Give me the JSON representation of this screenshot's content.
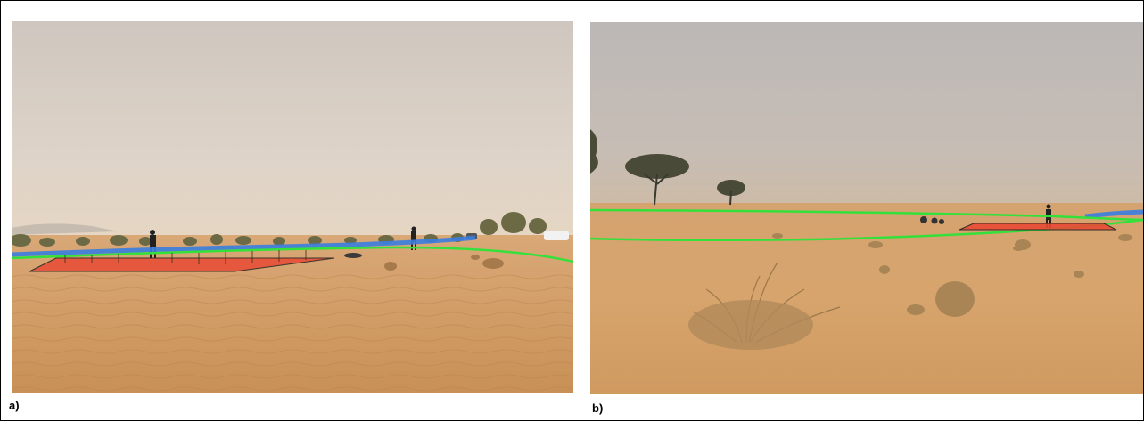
{
  "figure": {
    "panels": [
      {
        "label": "a)",
        "photo": "desert-sand-field-scene-with-people",
        "overlays": [
          {
            "kind": "outline",
            "color": "#3a7ee0"
          },
          {
            "kind": "outline",
            "color": "#34e03a"
          },
          {
            "kind": "polygon-fill",
            "color": "#e84b35"
          }
        ]
      },
      {
        "label": "b)",
        "photo": "desert-sand-field-scene-with-acacia-trees",
        "overlays": [
          {
            "kind": "outline",
            "color": "#3a7ee0"
          },
          {
            "kind": "outline",
            "color": "#34e03a"
          },
          {
            "kind": "polygon-fill",
            "color": "#e84b35"
          }
        ]
      }
    ]
  }
}
